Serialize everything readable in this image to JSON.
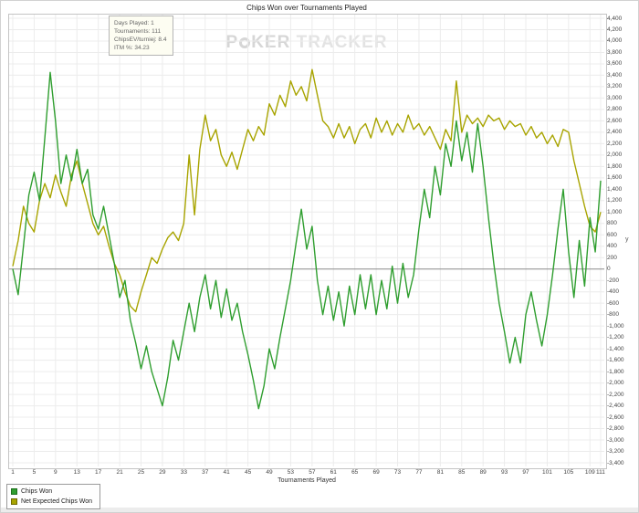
{
  "window": {
    "title": "Chips Won over Tournaments Played"
  },
  "watermark": {
    "poker_p": "P",
    "poker_rest": "KER",
    "tracker": "TRACKER"
  },
  "info_box": {
    "lines": [
      "Days Played: 1",
      "Tournaments: 111",
      "ChipsEV/turniej: 8.4",
      "ITM %: 34.23"
    ]
  },
  "legend": {
    "items": [
      {
        "label": "Chips Won",
        "color": "#2f9e2f",
        "border": "#1c6e1c"
      },
      {
        "label": "Net Expected Chips Won",
        "color": "#a8a400",
        "border": "#6e6a00"
      }
    ]
  },
  "chart_data": {
    "type": "line",
    "title": "Chips Won over Tournaments Played",
    "xlabel": "Tournaments Played",
    "ylabel": "y",
    "x_range": [
      1,
      111
    ],
    "ylim": [
      -3400,
      4400
    ],
    "y_step": 200,
    "grid": true,
    "legend_position": "bottom-left",
    "x_tick_labels": [
      "1",
      "5",
      "9",
      "13",
      "17",
      "21",
      "25",
      "29",
      "33",
      "37",
      "41",
      "45",
      "49",
      "53",
      "57",
      "61",
      "65",
      "69",
      "73",
      "77",
      "81",
      "85",
      "89",
      "93",
      "97",
      "101",
      "105",
      "109",
      "111"
    ],
    "y_tick_labels": [
      "4,400",
      "4,200",
      "4,000",
      "3,800",
      "3,600",
      "3,400",
      "3,200",
      "3,000",
      "2,800",
      "2,600",
      "2,400",
      "2,200",
      "2,000",
      "1,800",
      "1,600",
      "1,400",
      "1,200",
      "1,000",
      "800",
      "600",
      "400",
      "200",
      "0",
      "-200",
      "-400",
      "-600",
      "-800",
      "-1,000",
      "-1,200",
      "-1,400",
      "-1,600",
      "-1,800",
      "-2,000",
      "-2,200",
      "-2,400",
      "-2,600",
      "-2,800",
      "-3,000",
      "-3,200",
      "-3,400"
    ],
    "series": [
      {
        "name": "Chips Won",
        "color": "#2f9e2f",
        "values": [
          0,
          -450,
          400,
          1300,
          1700,
          1200,
          2300,
          3450,
          2600,
          1500,
          2000,
          1550,
          2100,
          1500,
          1750,
          950,
          700,
          1100,
          600,
          100,
          -500,
          -200,
          -900,
          -1300,
          -1750,
          -1350,
          -1800,
          -2100,
          -2400,
          -1900,
          -1250,
          -1600,
          -1100,
          -600,
          -1100,
          -500,
          -100,
          -700,
          -200,
          -850,
          -350,
          -900,
          -600,
          -1100,
          -1500,
          -1950,
          -2450,
          -2050,
          -1400,
          -1750,
          -1200,
          -700,
          -200,
          450,
          1050,
          350,
          750,
          -200,
          -800,
          -300,
          -900,
          -400,
          -1000,
          -300,
          -800,
          -100,
          -700,
          -100,
          -800,
          -200,
          -700,
          50,
          -600,
          100,
          -500,
          -100,
          700,
          1400,
          900,
          1800,
          1300,
          2200,
          1800,
          2600,
          1900,
          2400,
          1700,
          2550,
          1800,
          900,
          100,
          -600,
          -1100,
          -1650,
          -1200,
          -1650,
          -800,
          -400,
          -900,
          -1350,
          -800,
          -100,
          700,
          1400,
          300,
          -500,
          500,
          -300,
          900,
          300,
          1550
        ]
      },
      {
        "name": "Net Expected Chips Won",
        "color": "#a8a400",
        "values": [
          50,
          500,
          1100,
          800,
          650,
          1200,
          1500,
          1250,
          1650,
          1350,
          1100,
          1650,
          1900,
          1500,
          1150,
          800,
          600,
          750,
          400,
          100,
          -100,
          -400,
          -650,
          -750,
          -400,
          -100,
          200,
          100,
          350,
          550,
          650,
          500,
          800,
          2000,
          950,
          2100,
          2700,
          2250,
          2450,
          2000,
          1800,
          2050,
          1750,
          2100,
          2450,
          2250,
          2500,
          2350,
          2900,
          2700,
          3050,
          2850,
          3300,
          3050,
          3200,
          2950,
          3500,
          3050,
          2600,
          2500,
          2300,
          2550,
          2300,
          2500,
          2200,
          2450,
          2550,
          2300,
          2650,
          2400,
          2600,
          2350,
          2550,
          2400,
          2700,
          2450,
          2550,
          2350,
          2500,
          2300,
          2100,
          2450,
          2250,
          3300,
          2400,
          2700,
          2550,
          2650,
          2500,
          2700,
          2600,
          2650,
          2450,
          2600,
          2500,
          2550,
          2350,
          2500,
          2300,
          2400,
          2200,
          2350,
          2150,
          2450,
          2400,
          1900,
          1500,
          1100,
          750,
          650,
          1000
        ]
      }
    ]
  }
}
